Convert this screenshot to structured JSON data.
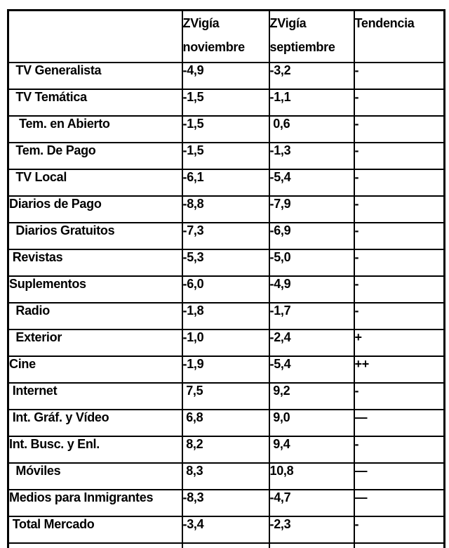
{
  "table": {
    "header": {
      "label": "",
      "col_november": {
        "line1": "ZVigía",
        "line2": "noviembre"
      },
      "col_september": {
        "line1": "ZVigía",
        "line2": "septiembre"
      },
      "col_trend": "Tendencia"
    },
    "rows": [
      {
        "label": "  TV Generalista",
        "nov": "-4,9",
        "sep": "-3,2",
        "trend": "-"
      },
      {
        "label": "  TV Temática",
        "nov": "-1,5",
        "sep": "-1,1",
        "trend": "-"
      },
      {
        "label": "   Tem. en Abierto",
        "nov": "-1,5",
        "sep": " 0,6",
        "trend": "-"
      },
      {
        "label": "  Tem. De Pago",
        "nov": "-1,5",
        "sep": "-1,3",
        "trend": "-"
      },
      {
        "label": "  TV Local",
        "nov": "-6,1",
        "sep": "-5,4",
        "trend": "-"
      },
      {
        "label": "Diarios de Pago",
        "nov": "-8,8",
        "sep": "-7,9",
        "trend": "-"
      },
      {
        "label": "  Diarios Gratuitos",
        "nov": "-7,3",
        "sep": "-6,9",
        "trend": "-"
      },
      {
        "label": " Revistas",
        "nov": "-5,3",
        "sep": "-5,0",
        "trend": "-"
      },
      {
        "label": "Suplementos",
        "nov": "-6,0",
        "sep": "-4,9",
        "trend": "-"
      },
      {
        "label": "  Radio",
        "nov": "-1,8",
        "sep": "-1,7",
        "trend": "-"
      },
      {
        "label": "  Exterior",
        "nov": "-1,0",
        "sep": "-2,4",
        "trend": "+"
      },
      {
        "label": "Cine",
        "nov": "-1,9",
        "sep": "-5,4",
        "trend": "++"
      },
      {
        "label": " Internet",
        "nov": " 7,5",
        "sep": " 9,2",
        "trend": "-"
      },
      {
        "label": " Int. Gráf. y Vídeo",
        "nov": " 6,8",
        "sep": " 9,0",
        "trend": "—"
      },
      {
        "label": "Int. Busc. y Enl.",
        "nov": " 8,2",
        "sep": " 9,4",
        "trend": "-"
      },
      {
        "label": "  Móviles",
        "nov": " 8,3",
        "sep": "10,8",
        "trend": "—"
      },
      {
        "label": "Medios para Inmigrantes",
        "nov": "-8,3",
        "sep": "-4,7",
        "trend": "—"
      },
      {
        "label": " Total Mercado",
        "nov": "-3,4",
        "sep": "-2,3",
        "trend": "-"
      }
    ]
  },
  "colors": {
    "border": "#000000",
    "text": "#000000",
    "background": "#ffffff"
  }
}
